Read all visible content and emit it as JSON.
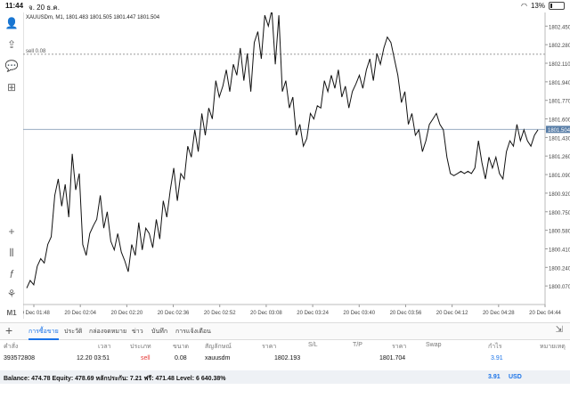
{
  "status": {
    "time": "11:44",
    "date": "จ. 20 ธ.ค.",
    "battery": "13%"
  },
  "chart": {
    "symbol": "XAUUSDm, M1, 1801.483 1801.505 1801.447 1801.504",
    "sell_label": "sell 0.08",
    "current_price": "1801.504",
    "price_min": 1799.9,
    "price_max": 1802.575,
    "yticks": [
      "1802.450",
      "1802.280",
      "1802.110",
      "1801.940",
      "1801.770",
      "1801.600",
      "1801.430",
      "1801.260",
      "1801.090",
      "1800.920",
      "1800.750",
      "1800.580",
      "1800.410",
      "1800.240",
      "1800.070"
    ],
    "xticks": [
      "20 Dec 01:48",
      "20 Dec 02:04",
      "20 Dec 02:20",
      "20 Dec 02:36",
      "20 Dec 02:52",
      "20 Dec 03:08",
      "20 Dec 03:24",
      "20 Dec 03:40",
      "20 Dec 03:56",
      "20 Dec 04:12",
      "20 Dec 04:28",
      "20 Dec 04:44"
    ],
    "closes": [
      1800.05,
      1800.12,
      1800.08,
      1800.25,
      1800.32,
      1800.28,
      1800.45,
      1800.52,
      1800.9,
      1801.05,
      1800.8,
      1801.0,
      1800.7,
      1801.28,
      1800.95,
      1801.1,
      1800.45,
      1800.35,
      1800.55,
      1800.62,
      1800.68,
      1800.9,
      1800.6,
      1800.75,
      1800.48,
      1800.4,
      1800.55,
      1800.38,
      1800.3,
      1800.2,
      1800.45,
      1800.35,
      1800.65,
      1800.4,
      1800.6,
      1800.55,
      1800.42,
      1800.68,
      1800.5,
      1800.85,
      1800.7,
      1800.95,
      1801.15,
      1800.85,
      1801.1,
      1801.05,
      1801.35,
      1801.25,
      1801.5,
      1801.3,
      1801.65,
      1801.45,
      1801.7,
      1801.6,
      1801.95,
      1801.8,
      1801.9,
      1802.05,
      1801.85,
      1802.1,
      1802.0,
      1802.25,
      1801.95,
      1802.2,
      1801.85,
      1802.3,
      1802.4,
      1802.15,
      1802.55,
      1802.45,
      1802.6,
      1802.1,
      1802.55,
      1801.85,
      1801.95,
      1801.7,
      1801.8,
      1801.45,
      1801.55,
      1801.35,
      1801.42,
      1801.65,
      1801.6,
      1801.72,
      1801.7,
      1801.95,
      1801.85,
      1802.0,
      1801.88,
      1802.05,
      1801.8,
      1801.9,
      1801.7,
      1801.85,
      1801.92,
      1802.0,
      1801.88,
      1802.05,
      1802.15,
      1801.95,
      1802.2,
      1802.1,
      1802.25,
      1802.35,
      1802.3,
      1802.15,
      1802.0,
      1801.75,
      1801.85,
      1801.55,
      1801.65,
      1801.45,
      1801.5,
      1801.3,
      1801.4,
      1801.55,
      1801.6,
      1801.65,
      1801.55,
      1801.5,
      1801.25,
      1801.1,
      1801.08,
      1801.1,
      1801.12,
      1801.1,
      1801.12,
      1801.1,
      1801.15,
      1801.4,
      1801.2,
      1801.05,
      1801.25,
      1801.15,
      1801.25,
      1801.1,
      1801.05,
      1801.3,
      1801.4,
      1801.35,
      1801.55,
      1801.4,
      1801.5,
      1801.4,
      1801.35,
      1801.45,
      1801.5
    ]
  },
  "tabs": [
    "การซื้อขาย",
    "ประวัติ",
    "กล่องจดหมาย",
    "ข่าว",
    "บันทึก",
    "การแจ้งเตือน"
  ],
  "table": {
    "headers": [
      "คำสั่ง",
      "เวลา",
      "ประเภท",
      "ขนาด",
      "สัญลักษณ์",
      "ราคา",
      "S/L",
      "T/P",
      "ราคา",
      "Swap",
      "กำไร",
      "หมายเหตุ"
    ],
    "row": {
      "order": "393572808",
      "time": "12.20 03:51",
      "type": "sell",
      "size": "0.08",
      "symbol": "xauusdm",
      "price": "1802.193",
      "sl": "",
      "tp": "",
      "price2": "1801.704",
      "swap": "",
      "profit": "3.91",
      "comment": ""
    }
  },
  "summary": {
    "text": "Balance: 474.78 Equity: 478.69 หลักประกัน: 7.21 ฟรี: 471.48 Level: 6 640.38%",
    "value": "3.91",
    "currency": "USD"
  }
}
